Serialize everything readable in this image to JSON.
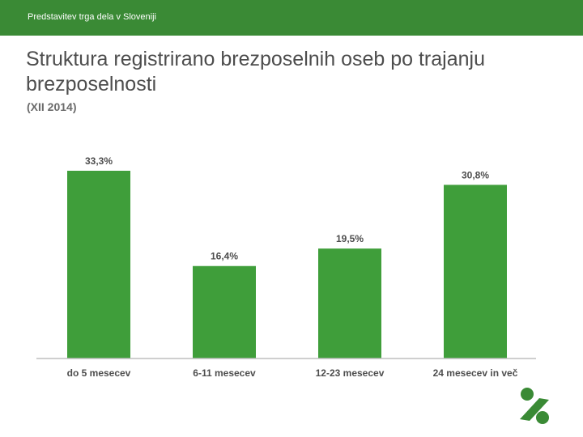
{
  "header": {
    "text": "Predstavitev trga dela v Sloveniji"
  },
  "slide": {
    "title": "Struktura registrirano brezposelnih oseb po trajanju brezposelnosti",
    "subtitle": "(XII 2014)"
  },
  "colors": {
    "accent": "#3a8a35",
    "bar": "#3f9e3a",
    "text": "#4d4d4d",
    "axis": "#bfbfbf"
  },
  "logo": {
    "icon": "company-logo-icon"
  },
  "chart_data": {
    "type": "bar",
    "categories": [
      "do 5 mesecev",
      "6-11 mesecev",
      "12-23 mesecev",
      "24 mesecev in več"
    ],
    "values": [
      33.3,
      16.4,
      19.5,
      30.8
    ],
    "data_labels": [
      "33,3%",
      "16,4%",
      "19,5%",
      "30,8%"
    ],
    "title": "Struktura registrirano brezposelnih oseb po trajanju brezposelnosti",
    "subtitle": "(XII 2014)",
    "xlabel": "",
    "ylabel": "",
    "ylim": [
      0,
      33.3
    ],
    "grid": false,
    "legend": "none"
  }
}
